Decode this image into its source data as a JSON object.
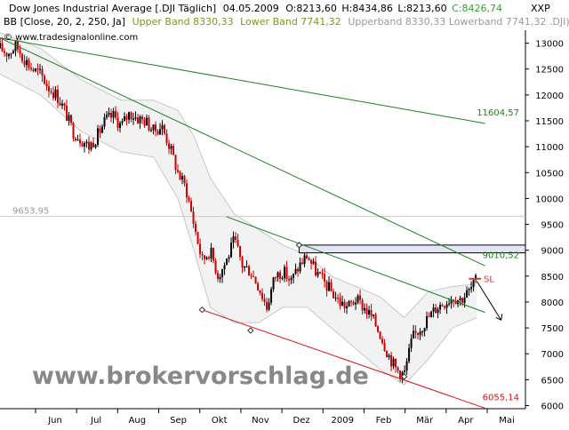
{
  "header": {
    "line1": {
      "name": "Dow Jones Industrial Average [.DJI  Täglich]",
      "date": "04.05.2009",
      "open": "O:8213,60",
      "high": "H:8434,86",
      "low": "L:8213,60",
      "close": "C:8426,74"
    },
    "line2": {
      "indicator": "BB [Close, 20, 2, 250, Ja]",
      "upper_label": "Upper Band 8330,33",
      "lower_label": "Lower Band 7741,32",
      "tail": "Upperband 8330,33 Lowerband 7741,32 .DJI)"
    },
    "copyright": "© www.tradesignalonline.com",
    "unit_label": "XXP"
  },
  "watermark": "www.brokervorschlag.de",
  "colors": {
    "price_up": "#000000",
    "price_down": "#cc0000",
    "green_trend": "#1f7f1f",
    "red_trend": "#dd1111",
    "band_fill": "#f2f2f2",
    "band_line": "#c8c8c8",
    "resistance_box": "#e3e5f7",
    "label_green": "#7a9a1a"
  },
  "chart_data": {
    "type": "candlestick",
    "y_ticks": [
      6000,
      6500,
      7000,
      7500,
      8000,
      8500,
      9000,
      9500,
      10000,
      10500,
      11000,
      11500,
      12000,
      12500,
      13000
    ],
    "ylim": [
      5940,
      13250
    ],
    "x_labels": [
      "Jun",
      "Jul",
      "Aug",
      "Sep",
      "Okt",
      "Nov",
      "Dez",
      "2009",
      "Feb",
      "Mär",
      "Apr",
      "Mai"
    ],
    "close_path": [
      [
        0,
        12900
      ],
      [
        2,
        12800
      ],
      [
        4,
        12950
      ],
      [
        6,
        12700
      ],
      [
        8,
        12500
      ],
      [
        10,
        12400
      ],
      [
        12,
        12150
      ],
      [
        14,
        12000
      ],
      [
        16,
        11700
      ],
      [
        18,
        11300
      ],
      [
        20,
        11150
      ],
      [
        22,
        11000
      ],
      [
        24,
        11200
      ],
      [
        26,
        11500
      ],
      [
        28,
        11600
      ],
      [
        30,
        11400
      ],
      [
        32,
        11650
      ],
      [
        34,
        11550
      ],
      [
        36,
        11500
      ],
      [
        38,
        11300
      ],
      [
        40,
        11400
      ],
      [
        42,
        11000
      ],
      [
        44,
        10500
      ],
      [
        46,
        10200
      ],
      [
        48,
        9500
      ],
      [
        50,
        8800
      ],
      [
        52,
        9000
      ],
      [
        54,
        8500
      ],
      [
        56,
        8800
      ],
      [
        58,
        9200
      ],
      [
        60,
        8700
      ],
      [
        62,
        8600
      ],
      [
        64,
        8300
      ],
      [
        66,
        7900
      ],
      [
        68,
        8500
      ],
      [
        70,
        8600
      ],
      [
        72,
        8400
      ],
      [
        74,
        8700
      ],
      [
        76,
        8900
      ],
      [
        78,
        8600
      ],
      [
        80,
        8400
      ],
      [
        82,
        8200
      ],
      [
        84,
        8000
      ],
      [
        86,
        7900
      ],
      [
        88,
        8050
      ],
      [
        90,
        7900
      ],
      [
        92,
        7700
      ],
      [
        94,
        7400
      ],
      [
        96,
        7000
      ],
      [
        98,
        6700
      ],
      [
        100,
        6600
      ],
      [
        102,
        7300
      ],
      [
        104,
        7500
      ],
      [
        106,
        7700
      ],
      [
        108,
        7900
      ],
      [
        110,
        8000
      ],
      [
        112,
        8100
      ],
      [
        114,
        8050
      ],
      [
        116,
        8200
      ],
      [
        118,
        8426.74
      ]
    ],
    "bands": {
      "upper": [
        [
          0,
          13200
        ],
        [
          10,
          12900
        ],
        [
          20,
          12300
        ],
        [
          30,
          11900
        ],
        [
          38,
          11900
        ],
        [
          44,
          11700
        ],
        [
          48,
          11200
        ],
        [
          52,
          10400
        ],
        [
          58,
          9700
        ],
        [
          64,
          9400
        ],
        [
          70,
          9100
        ],
        [
          76,
          8900
        ],
        [
          82,
          8500
        ],
        [
          88,
          8300
        ],
        [
          94,
          8100
        ],
        [
          100,
          7700
        ],
        [
          106,
          8200
        ],
        [
          112,
          8300
        ],
        [
          118,
          8350
        ]
      ],
      "lower": [
        [
          0,
          12400
        ],
        [
          10,
          12000
        ],
        [
          20,
          11300
        ],
        [
          30,
          10900
        ],
        [
          38,
          10800
        ],
        [
          44,
          10000
        ],
        [
          48,
          9000
        ],
        [
          52,
          7900
        ],
        [
          58,
          7600
        ],
        [
          64,
          7600
        ],
        [
          70,
          7900
        ],
        [
          76,
          7900
        ],
        [
          82,
          7500
        ],
        [
          88,
          7100
        ],
        [
          94,
          6700
        ],
        [
          100,
          6400
        ],
        [
          106,
          6900
        ],
        [
          112,
          7500
        ],
        [
          118,
          7700
        ]
      ]
    },
    "reference_lines": [
      {
        "label": "9653,95",
        "value": 9653.95,
        "style": "horizontal"
      }
    ],
    "trend_lines": [
      {
        "label": "11604,57",
        "color": "green",
        "from": [
          0,
          13100
        ],
        "to": [
          120,
          11450
        ]
      },
      {
        "label": "9010,52",
        "color": "green",
        "from": [
          0,
          13100
        ],
        "to": [
          120,
          8700
        ]
      },
      {
        "label": "",
        "color": "green",
        "from": [
          56,
          9650
        ],
        "to": [
          120,
          7800
        ]
      },
      {
        "label": "6055,14",
        "color": "red",
        "from": [
          50,
          7850
        ],
        "to": [
          120,
          5950
        ]
      }
    ],
    "resistance_box": {
      "label": "9010,52",
      "y_top": 9100,
      "y_bottom": 8950,
      "x_start": 74
    },
    "stop_loss": {
      "label": "SL",
      "value": 8450
    },
    "pivot_markers": [
      [
        50,
        7850
      ],
      [
        62,
        7450
      ],
      [
        100,
        6560
      ],
      [
        74,
        9100
      ]
    ]
  }
}
